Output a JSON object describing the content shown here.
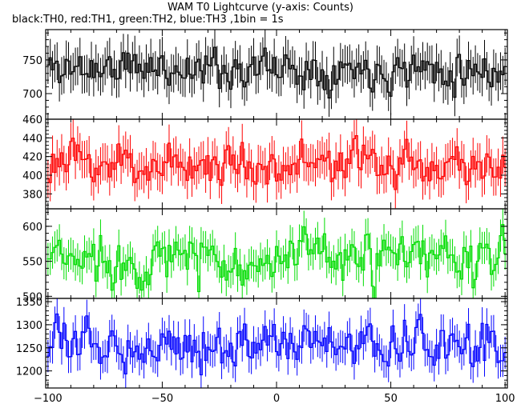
{
  "header": {
    "title": "WAM T0 Lightcurve (y-axis: Counts)",
    "subtitle": "black:TH0, red:TH1, green:TH2, blue:TH3 ,1bin = 1s"
  },
  "colors": {
    "TH0": "#000000",
    "TH1": "#ff0000",
    "TH2": "#00dd00",
    "TH3": "#0000ff",
    "frame": "#000000",
    "background": "#ffffff"
  },
  "chart_data": {
    "type": "line",
    "xlabel": "",
    "x_ticks": [
      -100,
      -50,
      0,
      50,
      100
    ],
    "xlim": [
      -101,
      101
    ],
    "grid": false,
    "legend": "none (series described in subtitle)",
    "panels": [
      {
        "name": "TH0",
        "color": "#000000",
        "ylim": [
          662,
          795
        ],
        "y_ticks": [
          700,
          750
        ],
        "baseline": 738,
        "noise_amplitude": 22,
        "error_bar": 28,
        "seed": 11
      },
      {
        "name": "TH1",
        "color": "#ff0000",
        "ylim": [
          364,
          460
        ],
        "y_ticks": [
          380,
          400,
          420,
          440,
          460
        ],
        "baseline": 412,
        "noise_amplitude": 17,
        "error_bar": 20,
        "seed": 23
      },
      {
        "name": "TH2",
        "color": "#00dd00",
        "ylim": [
          497,
          625
        ],
        "y_ticks": [
          500,
          550,
          600
        ],
        "baseline": 552,
        "noise_amplitude": 28,
        "error_bar": 23,
        "seed": 37
      },
      {
        "name": "TH3",
        "color": "#0000ff",
        "ylim": [
          1163,
          1357
        ],
        "y_ticks": [
          1200,
          1250,
          1300,
          1350
        ],
        "baseline": 1258,
        "noise_amplitude": 36,
        "error_bar": 35,
        "seed": 53
      }
    ]
  }
}
